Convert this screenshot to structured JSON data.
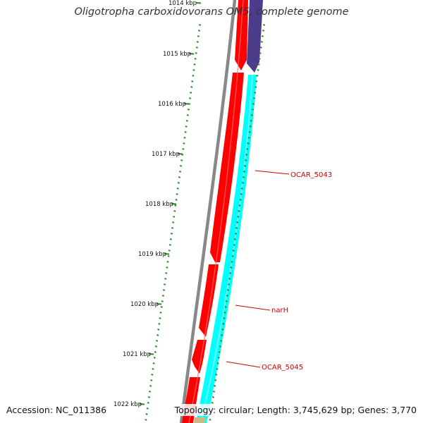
{
  "title": "Oligotropha carboxidovorans OM5, complete genome",
  "footer": {
    "accession": "Accession: NC_011386",
    "summary": "Topology: circular; Length: 3,745,629 bp; Genes: 3,770"
  },
  "ruler": {
    "labels": [
      "1014 kbp",
      "1015 kbp",
      "1016 kbp",
      "1017 kbp",
      "1018 kbp",
      "1019 kbp",
      "1020 kbp",
      "1021 kbp",
      "1022 kbp"
    ]
  },
  "gene_labels": [
    "OCAR_5043",
    "narH",
    "OCAR_5045"
  ],
  "colors": {
    "backbone": "#888888",
    "forward_genes": "#ff0000",
    "reverse_cds": "#00ffff",
    "reverse_other": "#4b3c8c",
    "ticks": "#2a8a2a",
    "gene_label": "#cc0000",
    "bottom_feature": "#c9b98a"
  }
}
